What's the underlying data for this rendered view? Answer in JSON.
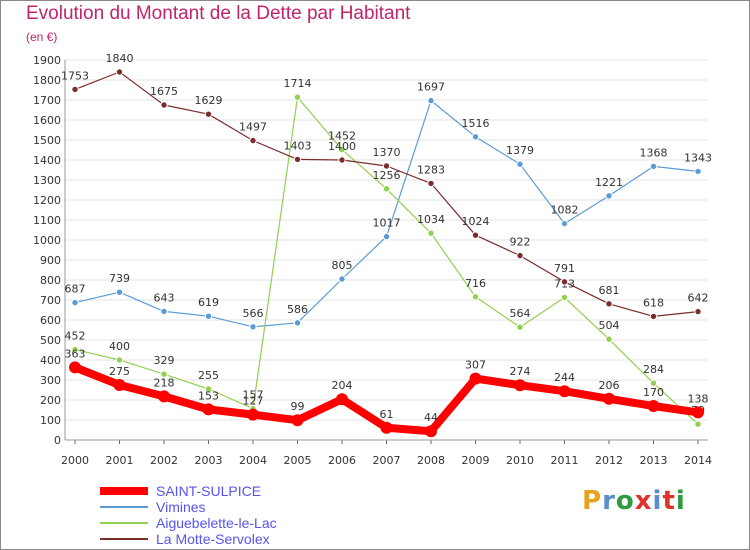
{
  "title": "Evolution du Montant de la Dette par Habitant",
  "subtitle": "(en €)",
  "logo": {
    "text": "Proxiti",
    "colors": [
      "#e8a21c",
      "#5a8ec9",
      "#2f9b3c",
      "#e2332b",
      "#5a8ec9",
      "#e2332b",
      "#2f9b3c"
    ]
  },
  "chart_data": {
    "type": "line",
    "title": "Evolution du Montant de la Dette par Habitant",
    "subtitle": "(en €)",
    "xlabel": "",
    "ylabel": "",
    "x": [
      "2000",
      "2001",
      "2002",
      "2003",
      "2004",
      "2005",
      "2006",
      "2007",
      "2008",
      "2009",
      "2010",
      "2011",
      "2012",
      "2013",
      "2014"
    ],
    "ylim": [
      0,
      1900
    ],
    "yticks": [
      0,
      100,
      200,
      300,
      400,
      500,
      600,
      700,
      800,
      900,
      1000,
      1100,
      1200,
      1300,
      1400,
      1500,
      1600,
      1700,
      1800,
      1900
    ],
    "grid": true,
    "legend_position": "bottom-left",
    "series": [
      {
        "name": "SAINT-SULPICE",
        "color": "#ff0000",
        "values": [
          363,
          275,
          218,
          153,
          127,
          99,
          204,
          61,
          44,
          307,
          274,
          244,
          206,
          170,
          138
        ]
      },
      {
        "name": "Vimines",
        "color": "#5b9bd5",
        "values": [
          687,
          739,
          643,
          619,
          566,
          586,
          805,
          1017,
          1697,
          1516,
          1379,
          1082,
          1221,
          1368,
          1343
        ]
      },
      {
        "name": "Aiguebelette-le-Lac",
        "color": "#92d050",
        "values": [
          452,
          400,
          329,
          255,
          157,
          1714,
          1452,
          1256,
          1034,
          716,
          564,
          713,
          504,
          284,
          79
        ]
      },
      {
        "name": "La Motte-Servolex",
        "color": "#7b2c2c",
        "values": [
          1753,
          1840,
          1675,
          1629,
          1497,
          1403,
          1400,
          1370,
          1283,
          1024,
          922,
          791,
          681,
          618,
          642
        ]
      }
    ]
  }
}
